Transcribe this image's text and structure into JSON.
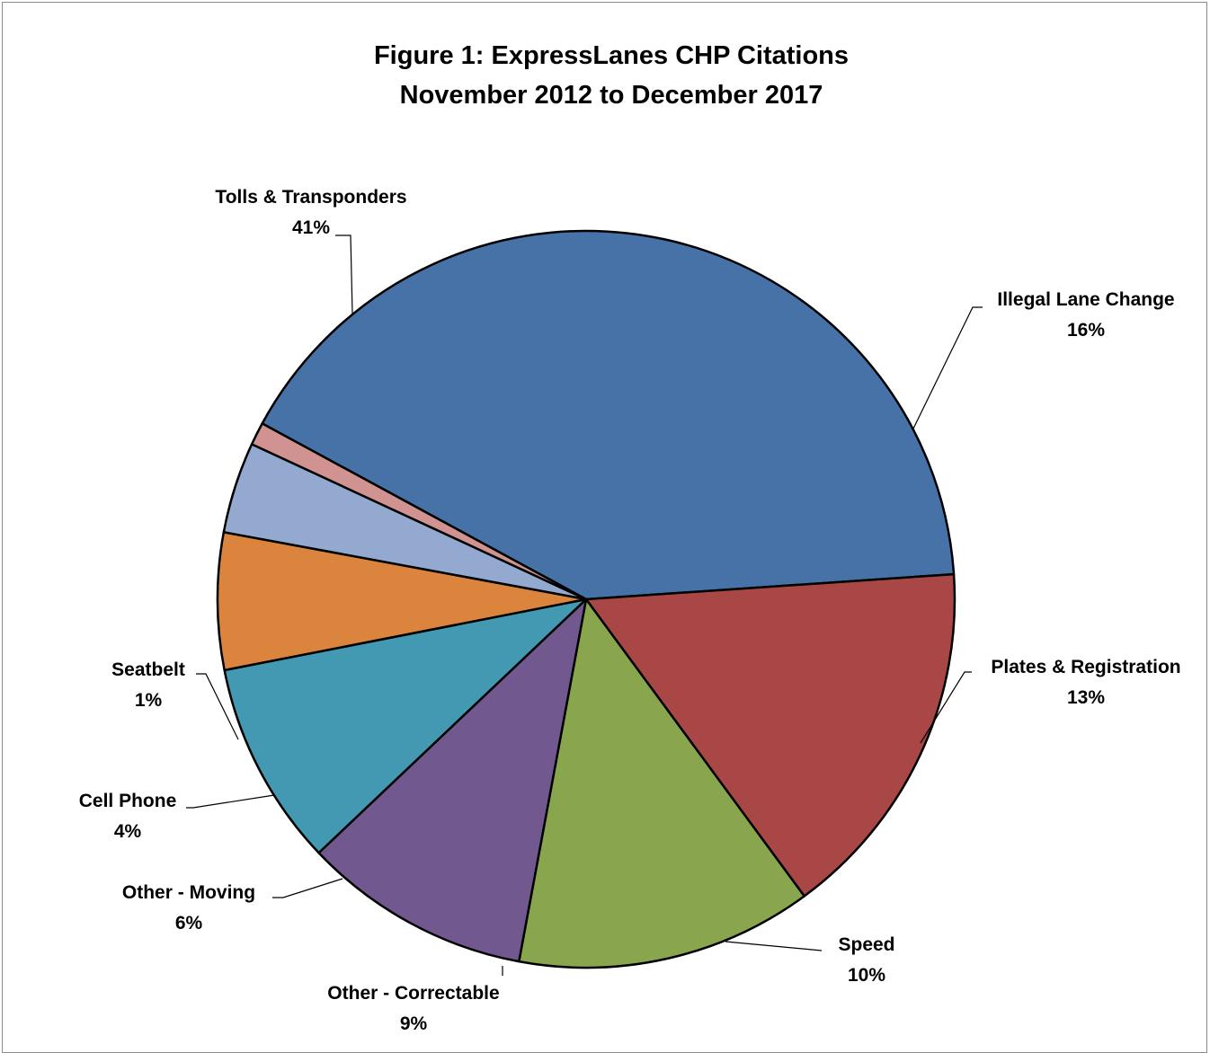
{
  "chart_data": {
    "type": "pie",
    "title": "Figure 1: ExpressLanes CHP Citations",
    "subtitle": "November 2012 to December 2017",
    "slices": [
      {
        "label": "Tolls & Transponders",
        "value": 41,
        "value_label": "41%",
        "color": "#4672A8"
      },
      {
        "label": "Illegal Lane Change",
        "value": 16,
        "value_label": "16%",
        "color": "#A84745"
      },
      {
        "label": "Plates & Registration",
        "value": 13,
        "value_label": "13%",
        "color": "#89A64E"
      },
      {
        "label": "Speed",
        "value": 10,
        "value_label": "10%",
        "color": "#71588F"
      },
      {
        "label": "Other - Correctable",
        "value": 9,
        "value_label": "9%",
        "color": "#4299B1"
      },
      {
        "label": "Other - Moving",
        "value": 6,
        "value_label": "6%",
        "color": "#DB843D"
      },
      {
        "label": "Cell Phone",
        "value": 4,
        "value_label": "4%",
        "color": "#93A9CF"
      },
      {
        "label": "Seatbelt",
        "value": 1,
        "value_label": "1%",
        "color": "#D19392"
      }
    ]
  }
}
